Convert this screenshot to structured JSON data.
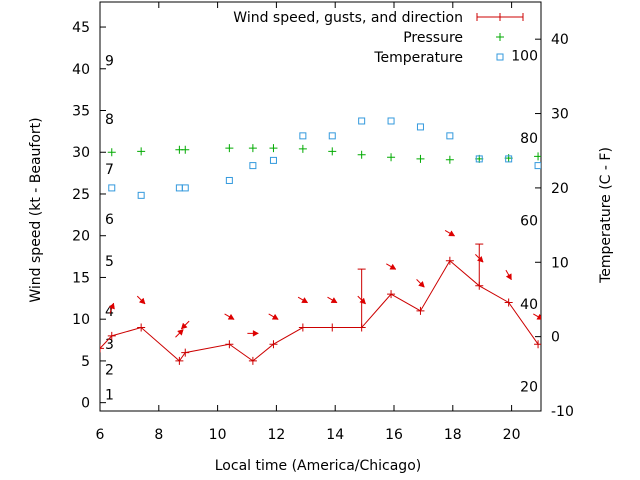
{
  "chart_data": {
    "type": "line",
    "xlabel": "Local time (America/Chicago)",
    "ylabel": "Wind speed (kt - Beaufort)",
    "y2label": "Temperature (C - F)",
    "xlim": [
      6,
      21
    ],
    "ylim": [
      -1,
      48
    ],
    "y2lim": [
      -10,
      45
    ],
    "xticks": [
      6,
      8,
      10,
      12,
      14,
      16,
      18,
      20
    ],
    "yticks": [
      0,
      5,
      10,
      15,
      20,
      25,
      30,
      35,
      40,
      45
    ],
    "y2ticks": [
      -10,
      0,
      10,
      20,
      30,
      40
    ],
    "beaufort_labels": [
      {
        "label": "1",
        "y": 1
      },
      {
        "label": "2",
        "y": 4
      },
      {
        "label": "3",
        "y": 7
      },
      {
        "label": "4",
        "y": 11
      },
      {
        "label": "5",
        "y": 17
      },
      {
        "label": "6",
        "y": 22
      },
      {
        "label": "7",
        "y": 28
      },
      {
        "label": "8",
        "y": 34
      },
      {
        "label": "9",
        "y": 41
      }
    ],
    "fahrenheit_labels": [
      {
        "label": "20",
        "y2": -6.7
      },
      {
        "label": "40",
        "y2": 4.4
      },
      {
        "label": "60",
        "y2": 15.6
      },
      {
        "label": "80",
        "y2": 26.7
      },
      {
        "label": "100",
        "y2": 37.8
      }
    ],
    "legend_position": "top-right",
    "series": [
      {
        "name": "Wind speed, gusts, and direction",
        "color": "#cc0000",
        "x": [
          6,
          6.4,
          7.4,
          8.7,
          8.9,
          10.4,
          11.2,
          11.9,
          12.9,
          13.9,
          14.9,
          15.9,
          16.9,
          17.9,
          18.9,
          19.9,
          20.9
        ],
        "y": [
          6.5,
          8,
          9,
          5,
          6,
          7,
          5,
          7,
          9,
          9,
          9,
          13,
          11,
          17,
          14,
          12,
          7
        ],
        "gusts": [
          null,
          null,
          null,
          null,
          null,
          null,
          null,
          null,
          null,
          null,
          16,
          null,
          null,
          null,
          19,
          null,
          null
        ],
        "direction_deg": [
          null,
          200,
          315,
          225,
          45,
          300,
          270,
          300,
          300,
          300,
          315,
          300,
          315,
          300,
          315,
          330,
          300
        ]
      },
      {
        "name": "Pressure",
        "color": "#00aa00",
        "x": [
          6.4,
          7.4,
          8.7,
          8.9,
          10.4,
          11.2,
          11.9,
          12.9,
          13.9,
          14.9,
          15.9,
          16.9,
          17.9,
          18.9,
          19.9,
          20.9
        ],
        "y": [
          30,
          30.1,
          30.3,
          30.3,
          30.5,
          30.5,
          30.5,
          30.4,
          30.1,
          29.7,
          29.4,
          29.2,
          29.1,
          29.2,
          29.3,
          29.5
        ]
      },
      {
        "name": "Temperature",
        "color": "#3399dd",
        "axis": "y2",
        "x": [
          6.4,
          7.4,
          8.7,
          8.9,
          10.4,
          11.2,
          11.9,
          12.9,
          13.9,
          14.9,
          15.9,
          16.9,
          17.9,
          18.9,
          19.9,
          20.9
        ],
        "y": [
          20,
          19,
          20,
          20,
          21,
          23,
          23.7,
          27,
          27,
          29,
          29,
          28.2,
          27,
          23.9,
          23.9,
          23
        ]
      }
    ]
  }
}
